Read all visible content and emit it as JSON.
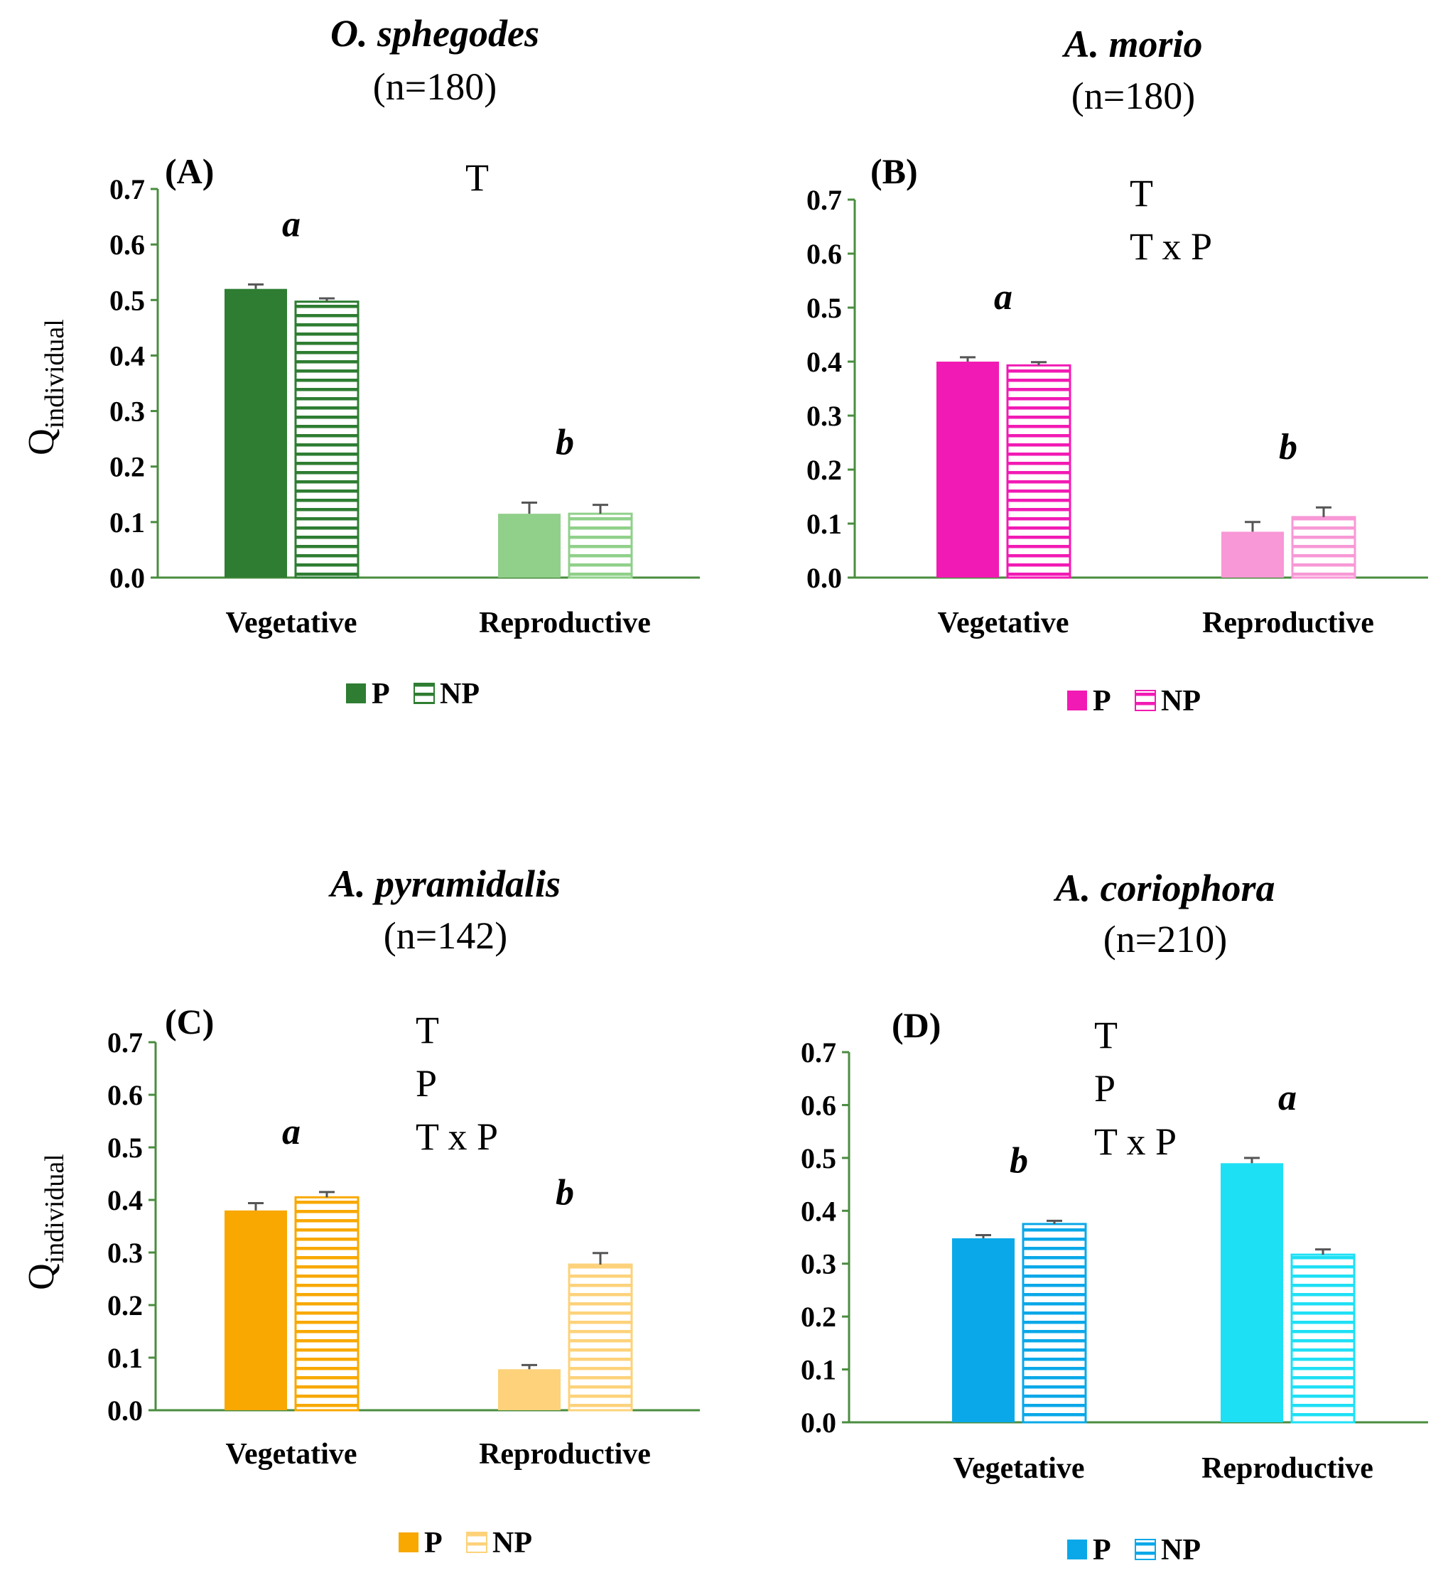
{
  "chart_data": [
    {
      "type": "bar",
      "panel": "(A)",
      "title": "O. sphegodes",
      "subtitle": "(n=180)",
      "ylabel": "Q",
      "ylabel_sub": "individual",
      "ylim": [
        0,
        0.7
      ],
      "yticks": [
        "0.0",
        "0.1",
        "0.2",
        "0.3",
        "0.4",
        "0.5",
        "0.6",
        "0.7"
      ],
      "categories": [
        "Vegetative",
        "Reproductive"
      ],
      "series": [
        {
          "name": "P",
          "values": [
            0.52,
            0.115
          ],
          "errors": [
            0.008,
            0.02
          ]
        },
        {
          "name": "NP",
          "values": [
            0.497,
            0.115
          ],
          "errors": [
            0.006,
            0.016
          ]
        }
      ],
      "colors": {
        "P": [
          "#2e7d32",
          "#90d08a"
        ],
        "NP": [
          "#2e7d32",
          "#90d08a"
        ]
      },
      "significance_letters": [
        "a",
        "b"
      ],
      "effects": [
        "T"
      ],
      "legend": [
        "P",
        "NP"
      ],
      "legend_colors": [
        "#2e7d32",
        "#2e7d32"
      ],
      "axis_color": "#4a8c3f"
    },
    {
      "type": "bar",
      "panel": "(B)",
      "title": "A. morio",
      "subtitle": "(n=180)",
      "ylim": [
        0,
        0.7
      ],
      "yticks": [
        "0.0",
        "0.1",
        "0.2",
        "0.3",
        "0.4",
        "0.5",
        "0.6",
        "0.7"
      ],
      "categories": [
        "Vegetative",
        "Reproductive"
      ],
      "series": [
        {
          "name": "P",
          "values": [
            0.4,
            0.085
          ],
          "errors": [
            0.008,
            0.018
          ]
        },
        {
          "name": "NP",
          "values": [
            0.393,
            0.112
          ],
          "errors": [
            0.006,
            0.018
          ]
        }
      ],
      "colors": {
        "P": [
          "#f21ab4",
          "#f898d6"
        ],
        "NP": [
          "#f21ab4",
          "#f898d6"
        ]
      },
      "significance_letters": [
        "a",
        "b"
      ],
      "effects": [
        "T",
        "T x P"
      ],
      "legend": [
        "P",
        "NP"
      ],
      "legend_colors": [
        "#f21ab4",
        "#f21ab4"
      ],
      "axis_color": "#4a8c3f"
    },
    {
      "type": "bar",
      "panel": "(C)",
      "title": "A. pyramidalis",
      "subtitle": "(n=142)",
      "ylabel": "Q",
      "ylabel_sub": "individual",
      "ylim": [
        0,
        0.7
      ],
      "yticks": [
        "0.0",
        "0.1",
        "0.2",
        "0.3",
        "0.4",
        "0.5",
        "0.6",
        "0.7"
      ],
      "categories": [
        "Vegetative",
        "Reproductive"
      ],
      "series": [
        {
          "name": "P",
          "values": [
            0.38,
            0.078
          ],
          "errors": [
            0.014,
            0.008
          ]
        },
        {
          "name": "NP",
          "values": [
            0.405,
            0.277
          ],
          "errors": [
            0.01,
            0.022
          ]
        }
      ],
      "colors": {
        "P": [
          "#f8a800",
          "#fdd27a"
        ],
        "NP": [
          "#f8a800",
          "#fdd27a"
        ]
      },
      "significance_letters": [
        "a",
        "b"
      ],
      "effects": [
        "T",
        "P",
        "T x P"
      ],
      "legend": [
        "P",
        "NP"
      ],
      "legend_colors": [
        "#f8a800",
        "#fdd27a"
      ],
      "axis_color": "#4a8c3f"
    },
    {
      "type": "bar",
      "panel": "(D)",
      "title": "A. coriophora",
      "subtitle": "(n=210)",
      "ylim": [
        0,
        0.7
      ],
      "yticks": [
        "0.0",
        "0.1",
        "0.2",
        "0.3",
        "0.4",
        "0.5",
        "0.6",
        "0.7"
      ],
      "categories": [
        "Vegetative",
        "Reproductive"
      ],
      "series": [
        {
          "name": "P",
          "values": [
            0.348,
            0.49
          ],
          "errors": [
            0.006,
            0.01
          ]
        },
        {
          "name": "NP",
          "values": [
            0.375,
            0.317
          ],
          "errors": [
            0.006,
            0.01
          ]
        }
      ],
      "colors": {
        "P": [
          "#0aa8e8",
          "#1ee0f5"
        ],
        "NP": [
          "#0aa8e8",
          "#1ee0f5"
        ]
      },
      "significance_letters": [
        "b",
        "a"
      ],
      "effects": [
        "T",
        "P",
        "T x P"
      ],
      "legend": [
        "P",
        "NP"
      ],
      "legend_colors": [
        "#0aa8e8",
        "#0aa8e8"
      ],
      "axis_color": "#4a8c3f"
    }
  ]
}
